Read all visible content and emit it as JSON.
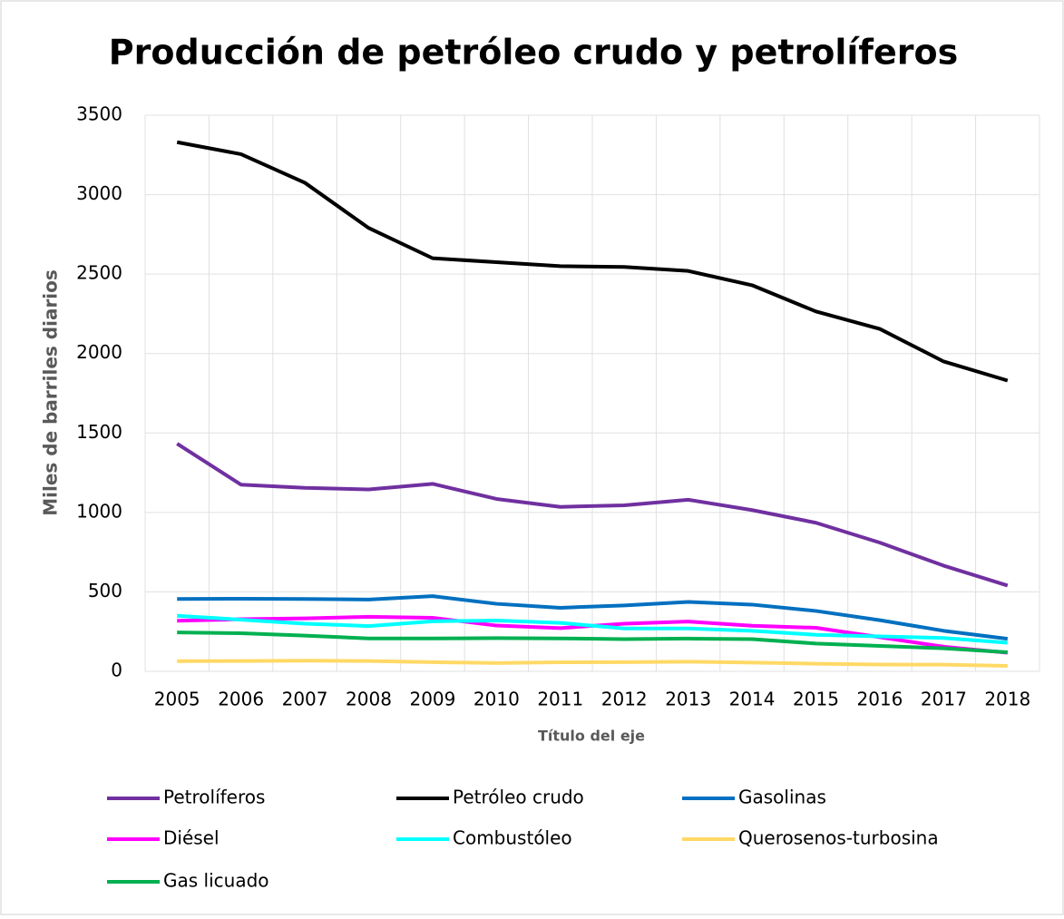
{
  "chart_data": {
    "type": "line",
    "title": "Producción de petróleo crudo y petrolíferos",
    "x_label": "Título del eje",
    "y_label": "Miles de barriles diarios",
    "categories": [
      "2005",
      "2006",
      "2007",
      "2008",
      "2009",
      "2010",
      "2011",
      "2012",
      "2013",
      "2014",
      "2015",
      "2016",
      "2017",
      "2018"
    ],
    "ylim": [
      0,
      3500
    ],
    "yticks": [
      0,
      500,
      1000,
      1500,
      2000,
      2500,
      3000,
      3500
    ],
    "grid": true,
    "legend": "bottom",
    "series": [
      {
        "name": "Petrolíferos",
        "color": "#7030a0",
        "values": [
          1433,
          1175,
          1155,
          1145,
          1180,
          1085,
          1035,
          1045,
          1080,
          1015,
          935,
          810,
          665,
          540
        ]
      },
      {
        "name": "Petróleo crudo",
        "color": "#000000",
        "values": [
          3330,
          3255,
          3075,
          2790,
          2600,
          2575,
          2550,
          2545,
          2520,
          2430,
          2265,
          2155,
          1950,
          1830
        ]
      },
      {
        "name": "Gasolinas",
        "color": "#0070c0",
        "values": [
          455,
          457,
          455,
          452,
          473,
          425,
          400,
          415,
          437,
          420,
          380,
          322,
          255,
          205
        ]
      },
      {
        "name": "Diésel",
        "color": "#ff00ff",
        "values": [
          318,
          328,
          333,
          343,
          337,
          288,
          272,
          300,
          313,
          287,
          274,
          215,
          155,
          117
        ]
      },
      {
        "name": "Combustóleo",
        "color": "#00ffff",
        "values": [
          350,
          325,
          300,
          285,
          315,
          320,
          305,
          270,
          270,
          255,
          230,
          220,
          210,
          180
        ]
      },
      {
        "name": "Querosenos-turbosina",
        "color": "#ffd966",
        "values": [
          64,
          65,
          67,
          65,
          58,
          52,
          57,
          58,
          61,
          55,
          48,
          43,
          42,
          34
        ]
      },
      {
        "name": "Gas licuado",
        "color": "#00b050",
        "values": [
          245,
          240,
          225,
          207,
          207,
          209,
          207,
          203,
          206,
          203,
          175,
          160,
          145,
          120
        ]
      }
    ]
  }
}
